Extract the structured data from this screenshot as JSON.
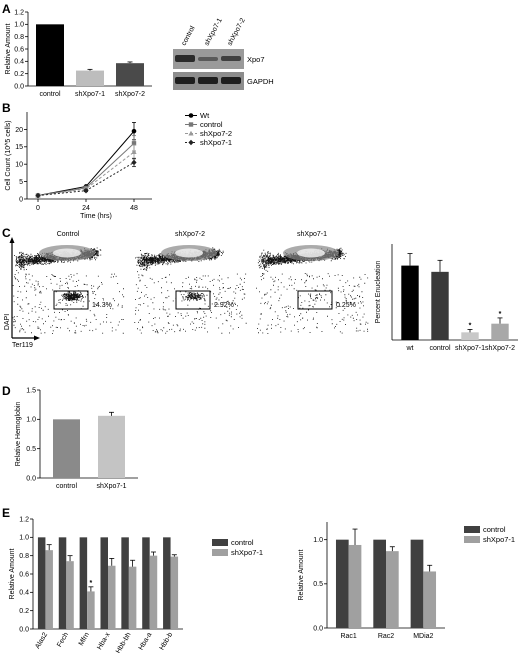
{
  "panels": {
    "A": {
      "label": "A",
      "chart_data": {
        "type": "bar",
        "categories": [
          "control",
          "shXpo7-1",
          "shXpo7-2"
        ],
        "values": [
          1.0,
          0.25,
          0.37
        ],
        "errors": [
          0,
          0.02,
          0.02
        ],
        "colors": [
          "#000000",
          "#bdbdbd",
          "#4a4a4a"
        ],
        "ylabel": "Relative Amount",
        "ylim": [
          0,
          1.2
        ],
        "yticks": [
          "0.0",
          "0.2",
          "0.4",
          "0.6",
          "0.8",
          "1.0",
          "1.2"
        ]
      },
      "blot": {
        "lanes": [
          "control",
          "shXpo7-1",
          "shXpo7-2"
        ],
        "rows": [
          "Xpo7",
          "GAPDH"
        ]
      }
    },
    "B": {
      "label": "B",
      "chart_data": {
        "type": "line",
        "x": [
          0,
          24,
          48
        ],
        "xticks": [
          "0",
          "24",
          "48"
        ],
        "xlabel": "Time (hrs)",
        "ylabel": "Cell Count (10^5 cells)",
        "ylim": [
          0,
          25
        ],
        "yticks": [
          "0",
          "5",
          "10",
          "15",
          "20"
        ],
        "series": [
          {
            "name": "Wt",
            "values": [
              1,
              3.6,
              19.5
            ],
            "errors": [
              0,
              0.3,
              2.5
            ],
            "color": "#000000",
            "marker": "circle",
            "dash": ""
          },
          {
            "name": "control",
            "values": [
              1,
              3.2,
              16
            ],
            "errors": [
              0,
              0.3,
              2.2
            ],
            "color": "#777777",
            "marker": "square",
            "dash": ""
          },
          {
            "name": "shXpo7-2",
            "values": [
              1,
              2.9,
              13.5
            ],
            "errors": [
              0,
              0.3,
              2
            ],
            "color": "#999999",
            "marker": "triangle",
            "dash": "3,2"
          },
          {
            "name": "shXpo7-1",
            "values": [
              1,
              2.4,
              10.5
            ],
            "errors": [
              0,
              0.3,
              1.2
            ],
            "color": "#222222",
            "marker": "diamond",
            "dash": "2,2"
          }
        ]
      }
    },
    "C": {
      "label": "C",
      "flow": {
        "plots": [
          {
            "title": "Control",
            "gate": "14.3%"
          },
          {
            "title": "shXpo7-2",
            "gate": "2.92%"
          },
          {
            "title": "shXpo7-1",
            "gate": "0.25%"
          }
        ],
        "yaxis": "DAPI",
        "xaxis": "Ter119"
      },
      "chart_data": {
        "type": "bar",
        "categories": [
          "wt",
          "control",
          "shXpo7-1",
          "shXpo7-2"
        ],
        "values": [
          15.5,
          14.2,
          1.6,
          3.4
        ],
        "errors": [
          2.5,
          2.4,
          0.6,
          1.2
        ],
        "significance": [
          "",
          "",
          "*",
          "*"
        ],
        "colors": [
          "#000000",
          "#3a3a3a",
          "#c8c8c8",
          "#a8a8a8"
        ],
        "ylabel": "Percent Enucleation",
        "ylim": [
          0,
          20
        ]
      }
    },
    "D": {
      "label": "D",
      "chart_data": {
        "type": "bar",
        "categories": [
          "control",
          "shXpo7-1"
        ],
        "values": [
          1.0,
          1.06
        ],
        "errors": [
          0,
          0.06
        ],
        "colors": [
          "#8a8a8a",
          "#c4c4c4"
        ],
        "ylabel": "Relative Hemoglobin",
        "ylim": [
          0,
          1.5
        ],
        "yticks": [
          "0.0",
          "0.5",
          "1.0",
          "1.5"
        ]
      }
    },
    "E": {
      "label": "E",
      "chart_data": [
        {
          "type": "bar",
          "categories": [
            "Alas2",
            "Fech",
            "Mfrn",
            "Hba-x",
            "Hbb-bh",
            "Hba-a",
            "Hbb-b"
          ],
          "series": [
            {
              "name": "control",
              "values": [
                1,
                1,
                1,
                1,
                1,
                1,
                1
              ],
              "errors": [
                0,
                0,
                0,
                0,
                0,
                0,
                0
              ],
              "color": "#404040"
            },
            {
              "name": "shXpo7-1",
              "values": [
                0.86,
                0.74,
                0.41,
                0.69,
                0.68,
                0.8,
                0.79
              ],
              "errors": [
                0.06,
                0.06,
                0.05,
                0.08,
                0.07,
                0.04,
                0.02
              ],
              "color": "#a0a0a0"
            }
          ],
          "significance": [
            "",
            "",
            "*",
            "",
            "",
            "",
            ""
          ],
          "ylabel": "Relative Amount",
          "ylim": [
            0,
            1.2
          ],
          "yticks": [
            "0.0",
            "0.2",
            "0.4",
            "0.6",
            "0.8",
            "1.0",
            "1.2"
          ]
        },
        {
          "type": "bar",
          "categories": [
            "Rac1",
            "Rac2",
            "MDia2"
          ],
          "series": [
            {
              "name": "control",
              "values": [
                1,
                1,
                1
              ],
              "errors": [
                0,
                0,
                0
              ],
              "color": "#404040"
            },
            {
              "name": "shXpo7-1",
              "values": [
                0.94,
                0.87,
                0.64
              ],
              "errors": [
                0.18,
                0.05,
                0.07
              ],
              "color": "#a0a0a0"
            }
          ],
          "ylabel": "Relative Amount",
          "ylim": [
            0,
            1.2
          ],
          "yticks": [
            "0.0",
            "0.5",
            "1.0"
          ]
        }
      ]
    }
  }
}
